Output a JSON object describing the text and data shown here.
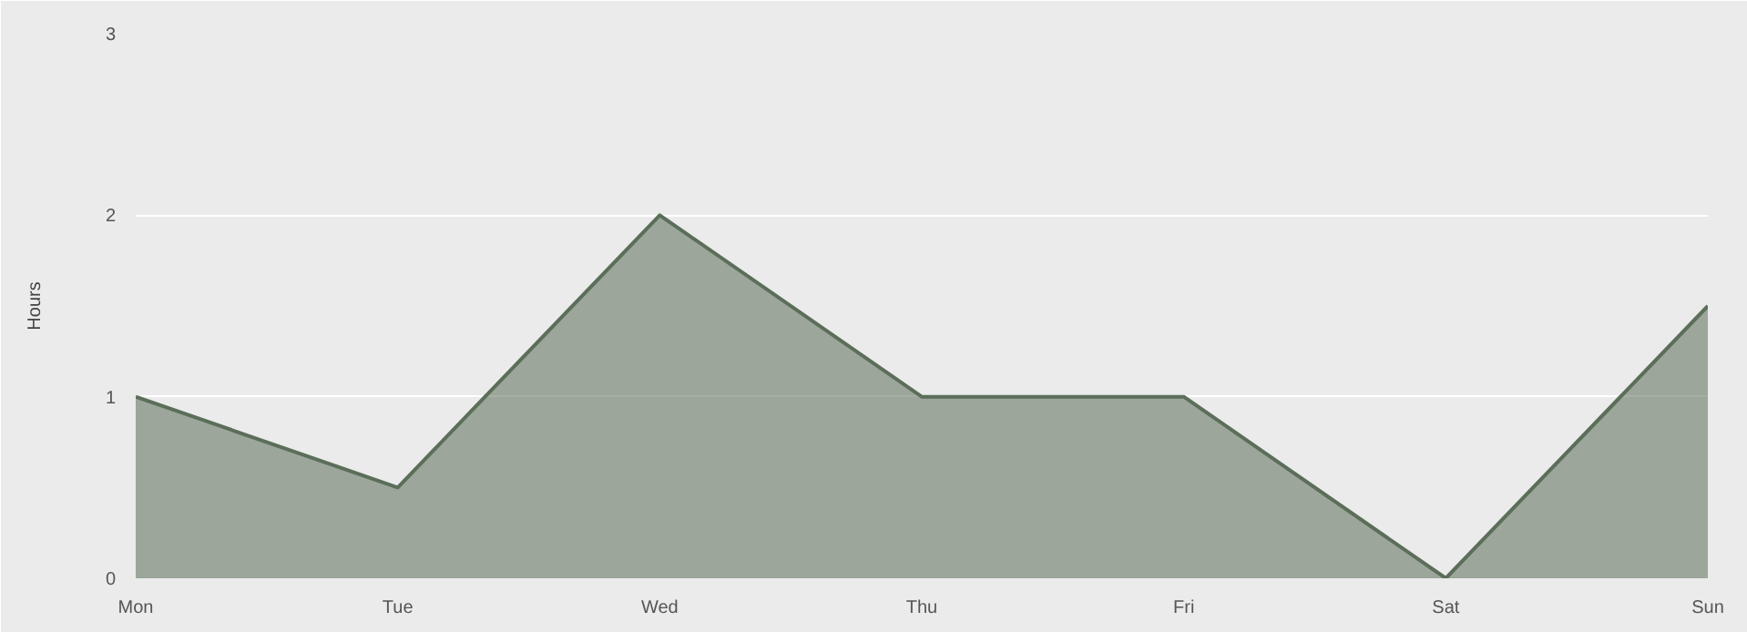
{
  "chart_data": {
    "type": "area",
    "ylabel": "Hours",
    "categories": [
      "Mon",
      "Tue",
      "Wed",
      "Thu",
      "Fri",
      "Sat",
      "Sun"
    ],
    "series": [
      {
        "color": "#5b6e59",
        "values": [
          1,
          0.5,
          2,
          1,
          1,
          0,
          1.5
        ]
      }
    ],
    "ylim": [
      0,
      3
    ],
    "yticks": [
      0,
      1,
      2,
      3
    ],
    "grid": "y",
    "marker": "none",
    "line_style": "solid"
  }
}
